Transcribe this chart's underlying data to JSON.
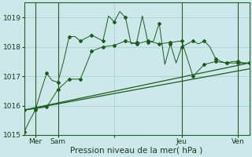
{
  "background_color": "#cde8ea",
  "plot_bg_color": "#cde8ea",
  "grid_color": "#b0d4d6",
  "line_color": "#1a5c1a",
  "ylim": [
    1015.0,
    1019.5
  ],
  "yticks": [
    1015,
    1016,
    1017,
    1018,
    1019
  ],
  "xlabel": "Pression niveau de la mer( hPa )",
  "xlabel_fontsize": 7.5,
  "tick_fontsize": 6.5,
  "xlim": [
    0,
    20
  ],
  "xtick_pos": [
    1,
    3,
    8,
    14,
    19
  ],
  "xtick_labels": [
    "Mer",
    "Sam",
    "",
    "Jeu",
    "Ven"
  ],
  "vline_positions": [
    1,
    3,
    14,
    19
  ],
  "series1_x": [
    0,
    0.5,
    1,
    1.5,
    2,
    2.5,
    3,
    3.5,
    4,
    4.5,
    5,
    5.5,
    6,
    6.5,
    7,
    7.5,
    8,
    8.5,
    9,
    9.5,
    10,
    10.5,
    11,
    11.5,
    12,
    12.5,
    13,
    13.5,
    14,
    14.5,
    15,
    15.5,
    16,
    16.5,
    17,
    17.5,
    18,
    18.5,
    19,
    19.5,
    20
  ],
  "series1_y": [
    1015.1,
    1015.5,
    1015.85,
    1016.5,
    1017.1,
    1016.85,
    1016.8,
    1017.5,
    1018.35,
    1018.35,
    1018.2,
    1018.3,
    1018.4,
    1018.3,
    1018.2,
    1019.05,
    1018.85,
    1019.2,
    1019.0,
    1018.1,
    1018.15,
    1019.05,
    1018.15,
    1018.2,
    1018.8,
    1017.4,
    1018.1,
    1017.45,
    1018.0,
    1018.1,
    1018.2,
    1018.1,
    1018.2,
    1018.0,
    1017.6,
    1017.5,
    1017.45,
    1017.5,
    1017.5,
    1017.45,
    1017.45
  ],
  "series2_x": [
    0,
    1,
    2,
    3,
    4,
    5,
    6,
    7,
    8,
    9,
    10,
    11,
    12,
    13,
    14,
    15,
    16,
    17,
    18,
    19,
    20
  ],
  "series2_y": [
    1015.85,
    1015.9,
    1015.95,
    1016.55,
    1016.9,
    1016.9,
    1017.85,
    1018.0,
    1018.05,
    1018.2,
    1018.1,
    1018.2,
    1018.1,
    1018.15,
    1018.2,
    1017.0,
    1017.4,
    1017.5,
    1017.45,
    1017.45,
    1017.45
  ],
  "series3_x": [
    0,
    20
  ],
  "series3_y": [
    1015.85,
    1017.45
  ],
  "series4_x": [
    0,
    20
  ],
  "series4_y": [
    1015.85,
    1017.25
  ]
}
